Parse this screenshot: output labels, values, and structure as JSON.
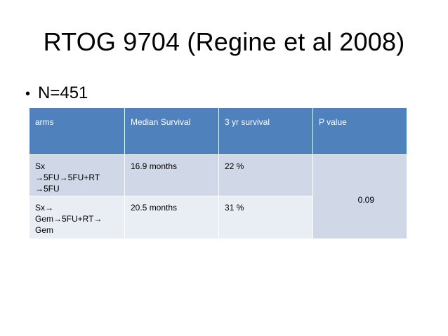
{
  "slide": {
    "title": "RTOG 9704 (Regine et al 2008)",
    "bullets": [
      {
        "symbol": "•",
        "text": "N=451"
      }
    ]
  },
  "table": {
    "headers": [
      "arms",
      "Median Survival",
      "3 yr survival",
      "P value"
    ],
    "rows": [
      {
        "arm_lines": [
          "Sx",
          "→5FU→5FU+RT",
          "→5FU"
        ],
        "median_survival": "16.9 months",
        "three_yr_survival": "22 %"
      },
      {
        "arm_lines": [
          "Sx→",
          "Gem→5FU+RT→",
          "Gem"
        ],
        "median_survival": "20.5 months",
        "three_yr_survival": "31 %"
      }
    ],
    "p_value": "0.09"
  },
  "colors": {
    "header_bg": "#4f81bd",
    "row1_bg": "#d0d8e8",
    "row2_bg": "#e9edf4"
  }
}
